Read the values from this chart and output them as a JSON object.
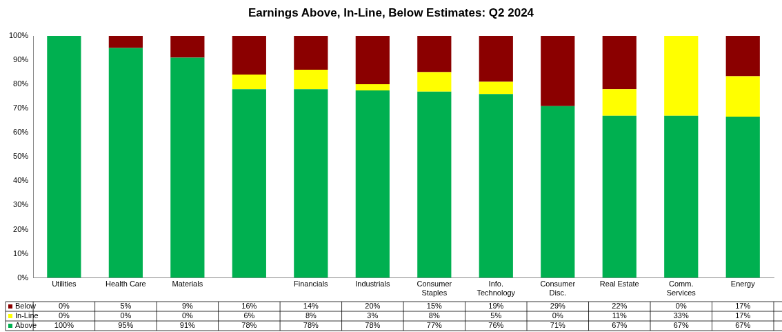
{
  "chart_data": {
    "type": "bar",
    "title": "Earnings Above, In-Line, Below Estimates: Q2 2024",
    "stacked": true,
    "categories": [
      "Utilities",
      "Health Care",
      "Materials",
      null,
      "Financials",
      "Industrials",
      "Consumer Staples",
      "Info. Technology",
      "Consumer Disc.",
      "Real Estate",
      "Comm. Services",
      "Energy"
    ],
    "series": [
      {
        "name": "Above",
        "color": "#00b050",
        "values": [
          100,
          95,
          91,
          78,
          78,
          77.5,
          77,
          76,
          71,
          67,
          67,
          66.6
        ],
        "value_labels": [
          "100%",
          "95%",
          "91%",
          "78%",
          "78%",
          "78%",
          "77%",
          "76%",
          "71%",
          "67%",
          "67%",
          "67%"
        ]
      },
      {
        "name": "In-Line",
        "color": "#ffff00",
        "values": [
          0,
          0,
          0,
          6,
          8,
          2.5,
          8,
          5,
          0,
          11,
          33,
          16.7
        ],
        "value_labels": [
          "0%",
          "0%",
          "0%",
          "6%",
          "8%",
          "3%",
          "8%",
          "5%",
          "0%",
          "11%",
          "33%",
          "17%"
        ]
      },
      {
        "name": "Below",
        "color": "#8b0000",
        "values": [
          0,
          5,
          9,
          16,
          14,
          20,
          15,
          19,
          29,
          22,
          0,
          16.7
        ],
        "value_labels": [
          "0%",
          "5%",
          "9%",
          "16%",
          "14%",
          "20%",
          "15%",
          "19%",
          "29%",
          "22%",
          "0%",
          "17%"
        ]
      }
    ],
    "ylim": [
      0,
      100
    ],
    "yticks": [
      {
        "value": 0,
        "label": "0%"
      },
      {
        "value": 10,
        "label": "10%"
      },
      {
        "value": 20,
        "label": "20%"
      },
      {
        "value": 30,
        "label": "30%"
      },
      {
        "value": 40,
        "label": "40%"
      },
      {
        "value": 50,
        "label": "50%"
      },
      {
        "value": 60,
        "label": "60%"
      },
      {
        "value": 70,
        "label": "70%"
      },
      {
        "value": 80,
        "label": "80%"
      },
      {
        "value": 90,
        "label": "90%"
      },
      {
        "value": 100,
        "label": "100%"
      }
    ],
    "legend": "bottom",
    "grid": false
  }
}
